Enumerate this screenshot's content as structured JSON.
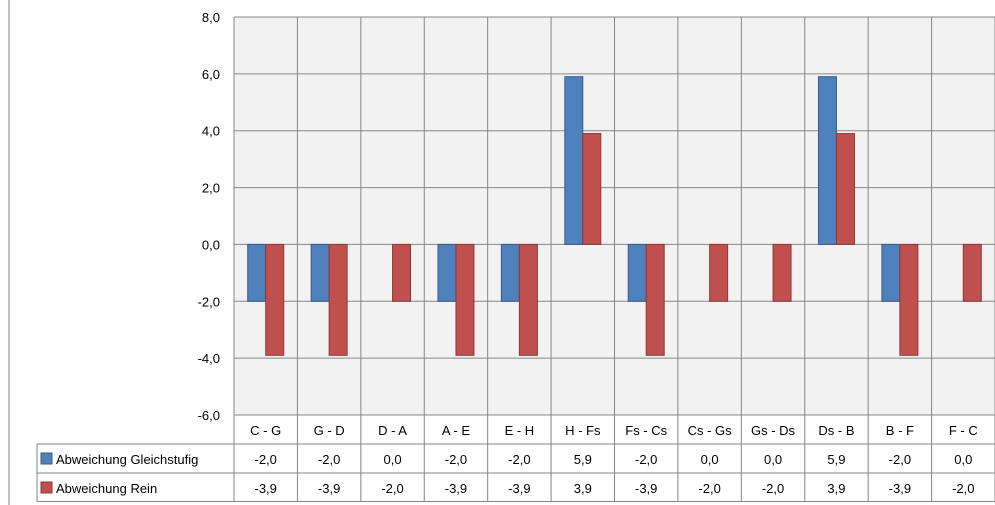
{
  "chart_data": {
    "type": "bar",
    "title": "",
    "xlabel": "",
    "ylabel": "",
    "categories": [
      "C - G",
      "G - D",
      "D - A",
      "A - E",
      "E - H",
      "H - Fs",
      "Fs - Cs",
      "Cs - Gs",
      "Gs - Ds",
      "Ds - B",
      "B - F",
      "F - C"
    ],
    "series": [
      {
        "name": "Abweichung Gleichstufig",
        "color": "#4F81BD",
        "values": [
          -2.0,
          -2.0,
          0.0,
          -2.0,
          -2.0,
          5.9,
          -2.0,
          0.0,
          0.0,
          5.9,
          -2.0,
          0.0
        ],
        "labels": [
          "-2,0",
          "-2,0",
          "0,0",
          "-2,0",
          "-2,0",
          "5,9",
          "-2,0",
          "0,0",
          "0,0",
          "5,9",
          "-2,0",
          "0,0"
        ]
      },
      {
        "name": "Abweichung Rein",
        "color": "#C0504D",
        "values": [
          -3.9,
          -3.9,
          -2.0,
          -3.9,
          -3.9,
          3.9,
          -3.9,
          -2.0,
          -2.0,
          3.9,
          -3.9,
          -2.0
        ],
        "labels": [
          "-3,9",
          "-3,9",
          "-2,0",
          "-3,9",
          "-3,9",
          "3,9",
          "-3,9",
          "-2,0",
          "-2,0",
          "3,9",
          "-3,9",
          "-2,0"
        ]
      }
    ],
    "ylim": [
      -6,
      8
    ],
    "yticks": [
      -6,
      -4,
      -2,
      0,
      2,
      4,
      6,
      8
    ],
    "ytick_labels": [
      "-6,0",
      "-4,0",
      "-2,0",
      "0,0",
      "2,0",
      "4,0",
      "6,0",
      "8,0"
    ],
    "grid": true,
    "legend": "data-table",
    "plot_background": "#F2F2F2"
  }
}
